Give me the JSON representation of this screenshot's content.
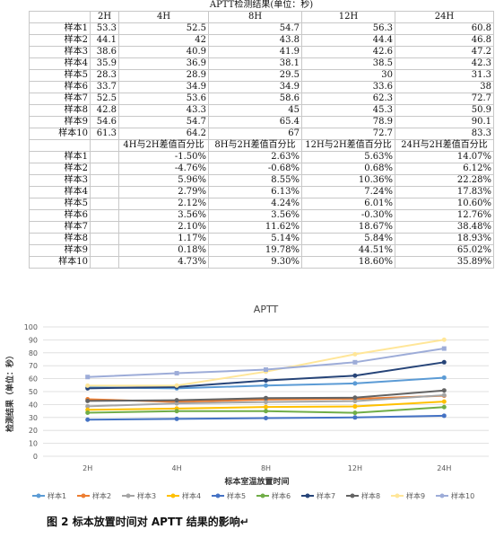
{
  "table": {
    "title": "APTT检测结果(单位：秒)",
    "headers": [
      "",
      "2H",
      "4H",
      "8H",
      "12H",
      "24H"
    ],
    "rows": [
      [
        "样本1",
        "53.3",
        "52.5",
        "54.7",
        "56.3",
        "60.8"
      ],
      [
        "样本2",
        "44.1",
        "42",
        "43.8",
        "44.4",
        "46.8"
      ],
      [
        "样本3",
        "38.6",
        "40.9",
        "41.9",
        "42.6",
        "47.2"
      ],
      [
        "样本4",
        "35.9",
        "36.9",
        "38.1",
        "38.5",
        "42.3"
      ],
      [
        "样本5",
        "28.3",
        "28.9",
        "29.5",
        "30",
        "31.3"
      ],
      [
        "样本6",
        "33.7",
        "34.9",
        "34.9",
        "33.6",
        "38"
      ],
      [
        "样本7",
        "52.5",
        "53.6",
        "58.6",
        "62.3",
        "72.7"
      ],
      [
        "样本8",
        "42.8",
        "43.3",
        "45",
        "45.3",
        "50.9"
      ],
      [
        "样本9",
        "54.6",
        "54.7",
        "65.4",
        "78.9",
        "90.1"
      ],
      [
        "样本10",
        "61.3",
        "64.2",
        "67",
        "72.7",
        "83.3"
      ]
    ],
    "diff_headers": [
      "",
      "",
      "4H与2H差值百分比",
      "8H与2H差值百分比",
      "12H与2H差值百分比",
      "24H与2H差值百分比"
    ],
    "diff_rows": [
      [
        "样本1",
        "",
        "-1.50%",
        "2.63%",
        "5.63%",
        "14.07%"
      ],
      [
        "样本2",
        "",
        "-4.76%",
        "-0.68%",
        "0.68%",
        "6.12%"
      ],
      [
        "样本3",
        "",
        "5.96%",
        "8.55%",
        "10.36%",
        "22.28%"
      ],
      [
        "样本4",
        "",
        "2.79%",
        "6.13%",
        "7.24%",
        "17.83%"
      ],
      [
        "样本5",
        "",
        "2.12%",
        "4.24%",
        "6.01%",
        "10.60%"
      ],
      [
        "样本6",
        "",
        "3.56%",
        "3.56%",
        "-0.30%",
        "12.76%"
      ],
      [
        "样本7",
        "",
        "2.10%",
        "11.62%",
        "18.67%",
        "38.48%"
      ],
      [
        "样本8",
        "",
        "1.17%",
        "5.14%",
        "5.84%",
        "18.93%"
      ],
      [
        "样本9",
        "",
        "0.18%",
        "19.78%",
        "44.51%",
        "65.02%"
      ],
      [
        "样本10",
        "",
        "4.73%",
        "9.30%",
        "18.60%",
        "35.89%"
      ]
    ]
  },
  "chart_data": {
    "type": "line",
    "title": "APTT",
    "xlabel": "标本室温放置时间",
    "ylabel": "检测结果（单位：秒）",
    "categories": [
      "2H",
      "4H",
      "8H",
      "12H",
      "24H"
    ],
    "ylim": [
      0,
      100
    ],
    "yticks": [
      0,
      10,
      20,
      30,
      40,
      50,
      60,
      70,
      80,
      90,
      100
    ],
    "grid": true,
    "legend": "bottom",
    "series": [
      {
        "name": "样本1",
        "color": "#5b9bd5",
        "values": [
          53.3,
          52.5,
          54.7,
          56.3,
          60.8
        ]
      },
      {
        "name": "样本2",
        "color": "#ed7d31",
        "values": [
          44.1,
          42,
          43.8,
          44.4,
          46.8
        ]
      },
      {
        "name": "样本3",
        "color": "#a5a5a5",
        "values": [
          38.6,
          40.9,
          41.9,
          42.6,
          47.2
        ]
      },
      {
        "name": "样本4",
        "color": "#ffc000",
        "values": [
          35.9,
          36.9,
          38.1,
          38.5,
          42.3
        ]
      },
      {
        "name": "样本5",
        "color": "#4472c4",
        "values": [
          28.3,
          28.9,
          29.5,
          30,
          31.3
        ]
      },
      {
        "name": "样本6",
        "color": "#70ad47",
        "values": [
          33.7,
          34.9,
          34.9,
          33.6,
          38
        ]
      },
      {
        "name": "样本7",
        "color": "#264478",
        "values": [
          52.5,
          53.6,
          58.6,
          62.3,
          72.7
        ]
      },
      {
        "name": "样本8",
        "color": "#636363",
        "values": [
          42.8,
          43.3,
          45,
          45.3,
          50.9
        ]
      },
      {
        "name": "样本9",
        "color": "#ffe699",
        "values": [
          54.6,
          54.7,
          65.4,
          78.9,
          90.1
        ]
      },
      {
        "name": "样本10",
        "color": "#9dacd8",
        "values": [
          61.3,
          64.2,
          67,
          72.7,
          83.3
        ]
      }
    ]
  },
  "caption": "图 2   标本放置时间对 APTT 结果的影响↵"
}
